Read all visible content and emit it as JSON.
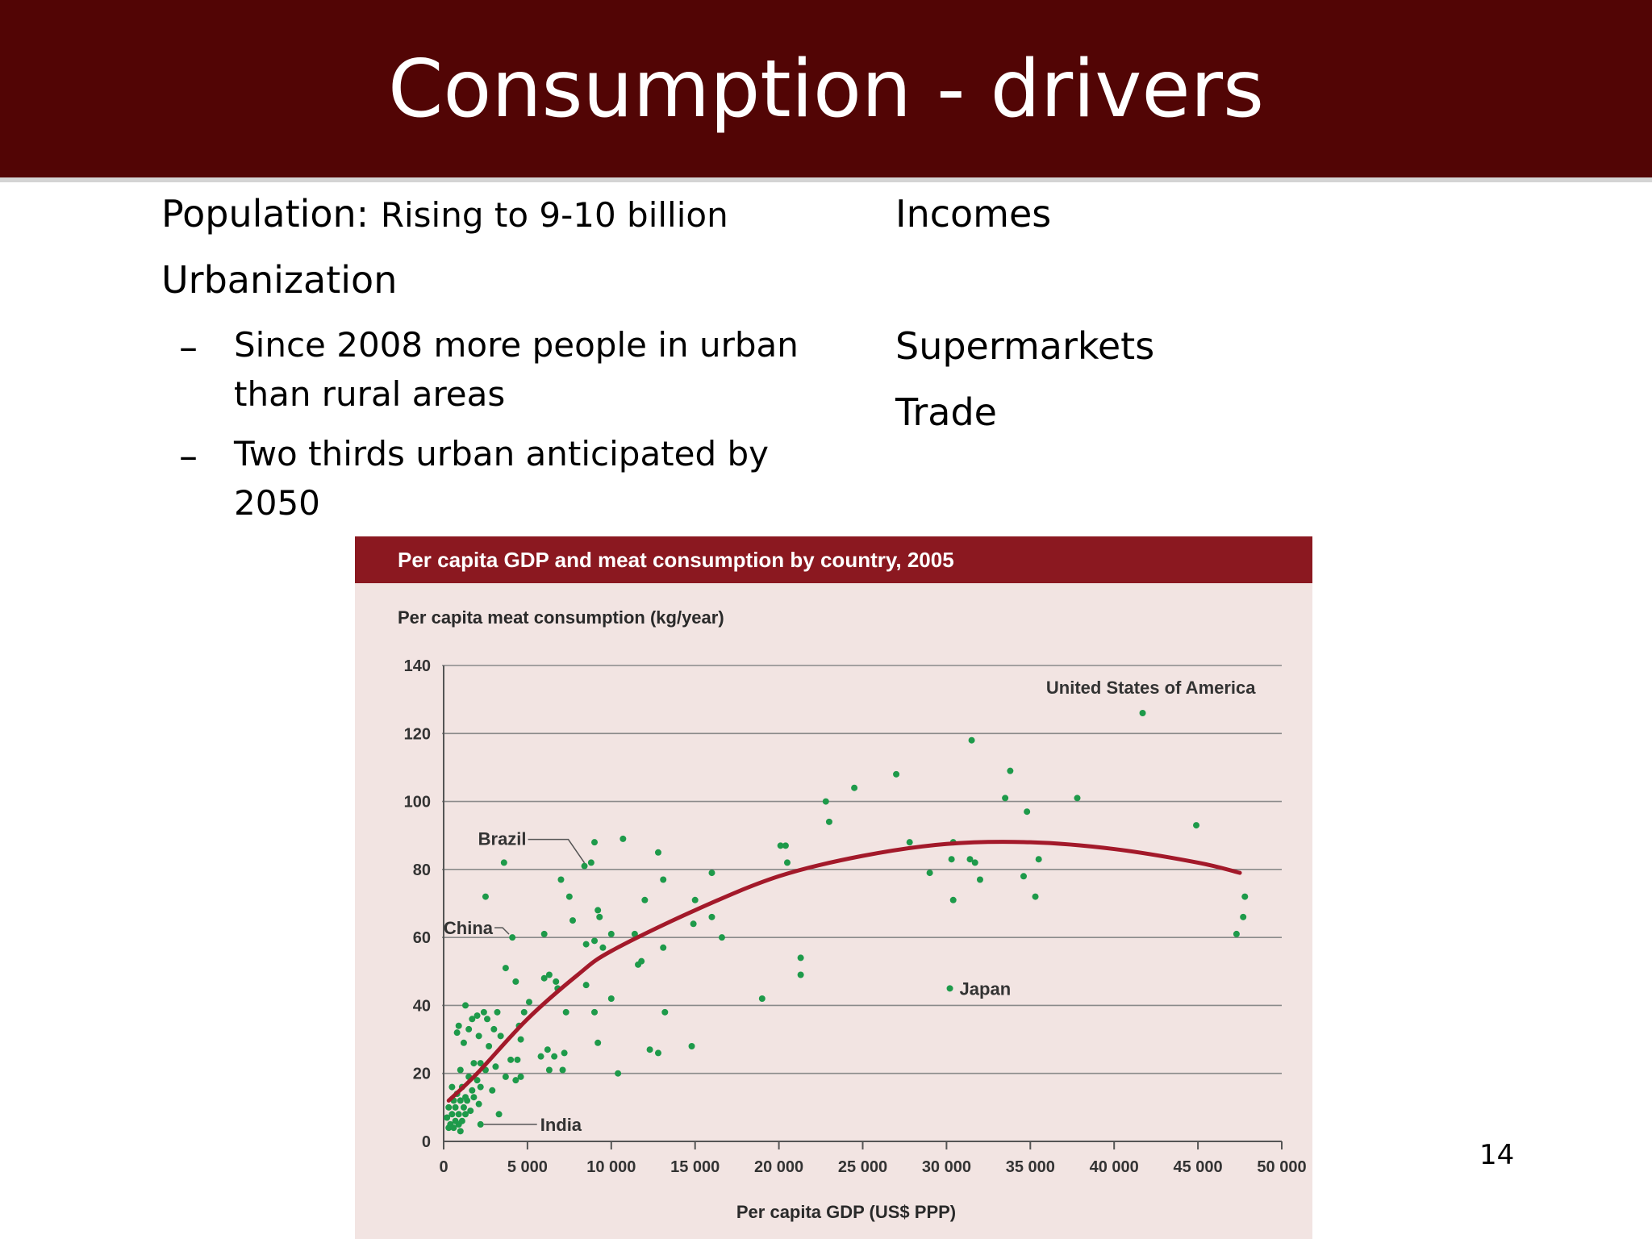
{
  "slide": {
    "title": "Consumption - drivers",
    "left": {
      "population_label": "Population:",
      "population_text": "Rising to 9-10 billion",
      "urbanization_label": "Urbanization",
      "bullet_symbol": "–",
      "bullets": [
        "Since 2008 more people in urban than rural areas",
        "Two thirds urban anticipated by 2050"
      ]
    },
    "right": {
      "items": [
        "Incomes",
        "Supermarkets",
        "Trade"
      ]
    },
    "page_number": "14"
  },
  "colors": {
    "header": "#520505",
    "chart_title_bar": "#8b1820",
    "chart_bg": "#f2e4e2",
    "points": "#1e9a4a",
    "trend": "#a3192a"
  },
  "chart_data": {
    "type": "scatter",
    "title": "Per capita GDP and meat consumption by country, 2005",
    "xlabel": "Per capita GDP (US$ PPP)",
    "ylabel": "Per capita meat consumption (kg/year)",
    "xlim": [
      0,
      50000
    ],
    "ylim": [
      0,
      140
    ],
    "x_ticks": [
      0,
      5000,
      10000,
      15000,
      20000,
      25000,
      30000,
      35000,
      40000,
      45000,
      50000
    ],
    "x_tick_labels": [
      "0",
      "5 000",
      "10 000",
      "15 000",
      "20 000",
      "25 000",
      "30 000",
      "35 000",
      "40 000",
      "45 000",
      "50 000"
    ],
    "y_ticks": [
      0,
      20,
      40,
      60,
      80,
      100,
      120,
      140
    ],
    "y_tick_labels": [
      "0",
      "20",
      "40",
      "60",
      "80",
      "100",
      "120",
      "140"
    ],
    "grid": "horizontal",
    "annotations": [
      {
        "label": "United States of America",
        "x": 41700,
        "y": 126
      },
      {
        "label": "Brazil",
        "x": 8400,
        "y": 81
      },
      {
        "label": "China",
        "x": 3900,
        "y": 60
      },
      {
        "label": "India",
        "x": 2200,
        "y": 5
      },
      {
        "label": "Japan",
        "x": 30200,
        "y": 45
      }
    ],
    "trend": {
      "name": "",
      "points": [
        [
          300,
          12
        ],
        [
          2000,
          20
        ],
        [
          5000,
          36
        ],
        [
          8000,
          49
        ],
        [
          10000,
          56
        ],
        [
          15000,
          68
        ],
        [
          20000,
          78
        ],
        [
          25000,
          84
        ],
        [
          30000,
          87.5
        ],
        [
          35000,
          88
        ],
        [
          40000,
          86
        ],
        [
          45000,
          82
        ],
        [
          47500,
          79
        ]
      ]
    },
    "points": [
      [
        41700,
        126
      ],
      [
        31500,
        118
      ],
      [
        33800,
        109
      ],
      [
        27000,
        108
      ],
      [
        24500,
        104
      ],
      [
        33500,
        101
      ],
      [
        37800,
        101
      ],
      [
        22800,
        100
      ],
      [
        34800,
        97
      ],
      [
        23000,
        94
      ],
      [
        44900,
        93
      ],
      [
        10700,
        89
      ],
      [
        9000,
        88
      ],
      [
        27800,
        88
      ],
      [
        30400,
        88
      ],
      [
        20100,
        87
      ],
      [
        20400,
        87
      ],
      [
        12800,
        85
      ],
      [
        20500,
        82
      ],
      [
        30300,
        83
      ],
      [
        31400,
        83
      ],
      [
        31700,
        82
      ],
      [
        35500,
        83
      ],
      [
        3600,
        82
      ],
      [
        8400,
        81
      ],
      [
        8800,
        82
      ],
      [
        16000,
        79
      ],
      [
        29000,
        79
      ],
      [
        32000,
        77
      ],
      [
        34600,
        78
      ],
      [
        7000,
        77
      ],
      [
        13100,
        77
      ],
      [
        2500,
        72
      ],
      [
        35300,
        72
      ],
      [
        47800,
        72
      ],
      [
        7500,
        72
      ],
      [
        9200,
        68
      ],
      [
        12000,
        71
      ],
      [
        15000,
        71
      ],
      [
        30400,
        71
      ],
      [
        9300,
        66
      ],
      [
        16000,
        66
      ],
      [
        7700,
        65
      ],
      [
        47700,
        66
      ],
      [
        14900,
        64
      ],
      [
        4100,
        60
      ],
      [
        10000,
        61
      ],
      [
        11400,
        61
      ],
      [
        6000,
        61
      ],
      [
        16600,
        60
      ],
      [
        47300,
        61
      ],
      [
        9000,
        59
      ],
      [
        8500,
        58
      ],
      [
        9500,
        57
      ],
      [
        13100,
        57
      ],
      [
        21300,
        54
      ],
      [
        11600,
        52
      ],
      [
        11800,
        53
      ],
      [
        3700,
        51
      ],
      [
        21300,
        49
      ],
      [
        6000,
        48
      ],
      [
        6300,
        49
      ],
      [
        6700,
        47
      ],
      [
        4300,
        47
      ],
      [
        8500,
        46
      ],
      [
        6800,
        45
      ],
      [
        19000,
        42
      ],
      [
        10000,
        42
      ],
      [
        5100,
        41
      ],
      [
        1300,
        40
      ],
      [
        3200,
        38
      ],
      [
        2400,
        38
      ],
      [
        4800,
        38
      ],
      [
        7300,
        38
      ],
      [
        9000,
        38
      ],
      [
        13200,
        38
      ],
      [
        1700,
        36
      ],
      [
        2000,
        37
      ],
      [
        2600,
        36
      ],
      [
        900,
        34
      ],
      [
        1500,
        33
      ],
      [
        3000,
        33
      ],
      [
        4500,
        34
      ],
      [
        800,
        32
      ],
      [
        2100,
        31
      ],
      [
        3400,
        31
      ],
      [
        4600,
        30
      ],
      [
        1200,
        29
      ],
      [
        9200,
        29
      ],
      [
        14800,
        28
      ],
      [
        2700,
        28
      ],
      [
        6200,
        27
      ],
      [
        12300,
        27
      ],
      [
        12800,
        26
      ],
      [
        7200,
        26
      ],
      [
        5800,
        25
      ],
      [
        6600,
        25
      ],
      [
        4400,
        24
      ],
      [
        4000,
        24
      ],
      [
        1800,
        23
      ],
      [
        2200,
        23
      ],
      [
        3100,
        22
      ],
      [
        1000,
        21
      ],
      [
        2500,
        21
      ],
      [
        6300,
        21
      ],
      [
        7100,
        21
      ],
      [
        10400,
        20
      ],
      [
        3700,
        19
      ],
      [
        4600,
        19
      ],
      [
        1500,
        19
      ],
      [
        2000,
        18
      ],
      [
        4300,
        18
      ],
      [
        500,
        16
      ],
      [
        1100,
        16
      ],
      [
        2200,
        16
      ],
      [
        1700,
        15
      ],
      [
        2900,
        15
      ],
      [
        800,
        14
      ],
      [
        1300,
        13
      ],
      [
        1800,
        13
      ],
      [
        600,
        12
      ],
      [
        1000,
        12
      ],
      [
        1400,
        12
      ],
      [
        2100,
        11
      ],
      [
        300,
        10
      ],
      [
        700,
        10
      ],
      [
        1200,
        10
      ],
      [
        1600,
        9
      ],
      [
        500,
        8
      ],
      [
        900,
        8
      ],
      [
        1300,
        8
      ],
      [
        3300,
        8
      ],
      [
        200,
        7
      ],
      [
        700,
        6
      ],
      [
        1100,
        6
      ],
      [
        400,
        5
      ],
      [
        900,
        5
      ],
      [
        2200,
        5
      ],
      [
        600,
        4
      ],
      [
        300,
        4
      ],
      [
        1000,
        3
      ]
    ]
  }
}
